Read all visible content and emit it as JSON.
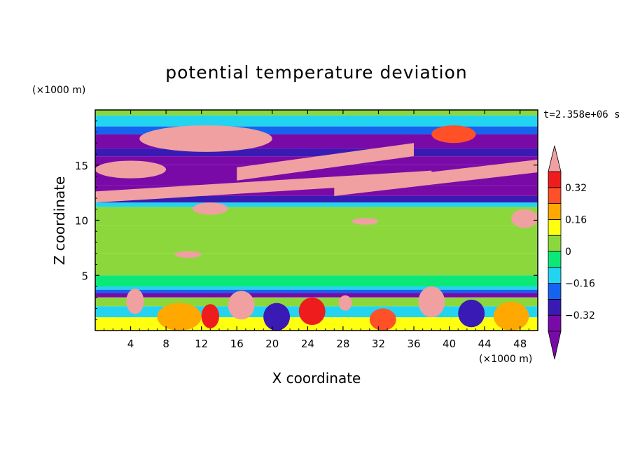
{
  "chart_data": {
    "type": "heatmap",
    "title": "potential temperature deviation",
    "time_label": "t=2.358e+06 s",
    "xlabel": "X coordinate",
    "ylabel": "Z coordinate",
    "x_unit": "(×1000 m)",
    "y_unit": "(×1000 m)",
    "xlim": [
      0,
      50
    ],
    "ylim": [
      0,
      20
    ],
    "x_ticks": [
      4,
      8,
      12,
      16,
      20,
      24,
      28,
      32,
      36,
      40,
      44,
      48
    ],
    "y_ticks": [
      5,
      10,
      15
    ],
    "colorbar": {
      "levels": [
        -0.4,
        -0.32,
        -0.24,
        -0.16,
        -0.08,
        0,
        0.08,
        0.16,
        0.24,
        0.32,
        0.4
      ],
      "tick_labels": [
        "0.32",
        "0.16",
        "0",
        "-0.16",
        "-0.32"
      ],
      "tick_values": [
        0.32,
        0.16,
        0,
        -0.16,
        -0.32
      ],
      "colors": [
        "#7a0aa8",
        "#3a1ab4",
        "#1464f0",
        "#22d4f0",
        "#0ce878",
        "#8cd83c",
        "#ffff10",
        "#ffa800",
        "#ff5028",
        "#ee1c1c"
      ],
      "over_color": "#f0a0a0",
      "under_color": "#7a0aa8"
    },
    "bands": [
      {
        "z": [
          19.5,
          20
        ],
        "value": 0.05
      },
      {
        "z": [
          18.5,
          19.5
        ],
        "value": -0.12
      },
      {
        "z": [
          17.8,
          18.5
        ],
        "value": -0.2
      },
      {
        "z": [
          16.5,
          17.8
        ],
        "value": -0.45
      },
      {
        "z": [
          15.8,
          16.5
        ],
        "value": -0.3
      },
      {
        "z": [
          15,
          15.8
        ],
        "value": -0.45
      },
      {
        "z": [
          14,
          15
        ],
        "value": -0.45
      },
      {
        "z": [
          13.2,
          14
        ],
        "value": -0.35
      },
      {
        "z": [
          12.2,
          13.2
        ],
        "value": -0.45
      },
      {
        "z": [
          11.6,
          12.2
        ],
        "value": -0.3
      },
      {
        "z": [
          11.2,
          11.6
        ],
        "value": -0.12
      },
      {
        "z": [
          9.5,
          11.2
        ],
        "value": 0.0
      },
      {
        "z": [
          7,
          9.5
        ],
        "value": 0.05
      },
      {
        "z": [
          5,
          7
        ],
        "value": 0.0
      },
      {
        "z": [
          4,
          5
        ],
        "value": -0.02
      },
      {
        "z": [
          3.7,
          4
        ],
        "value": -0.12
      },
      {
        "z": [
          3.4,
          3.7
        ],
        "value": -0.2
      },
      {
        "z": [
          3,
          3.4
        ],
        "value": -0.35
      },
      {
        "z": [
          2.2,
          3
        ],
        "value": 0.05
      },
      {
        "z": [
          1.2,
          2.2
        ],
        "value": -0.1
      },
      {
        "z": [
          0,
          1.2
        ],
        "value": 0.08
      }
    ],
    "features": [
      {
        "x": [
          5,
          20
        ],
        "z": [
          16.2,
          18.6
        ],
        "value": 0.45,
        "shape": "ellipse"
      },
      {
        "x": [
          38,
          43
        ],
        "z": [
          17,
          18.6
        ],
        "value": 0.3,
        "shape": "ellipse"
      },
      {
        "x": [
          0,
          8
        ],
        "z": [
          13.8,
          15.4
        ],
        "value": 0.45,
        "shape": "ellipse"
      },
      {
        "x": [
          16,
          36
        ],
        "z": [
          13.6,
          17
        ],
        "value": 0.45,
        "shape": "band-up"
      },
      {
        "x": [
          0,
          38
        ],
        "z": [
          11.6,
          14.5
        ],
        "value": 0.45,
        "shape": "band-up"
      },
      {
        "x": [
          27,
          50
        ],
        "z": [
          12.2,
          15.5
        ],
        "value": 0.45,
        "shape": "band-up"
      },
      {
        "x": [
          11,
          15
        ],
        "z": [
          10.5,
          11.6
        ],
        "value": 0.4,
        "shape": "ellipse"
      },
      {
        "x": [
          29,
          32
        ],
        "z": [
          9.6,
          10.2
        ],
        "value": 0.4,
        "shape": "ellipse"
      },
      {
        "x": [
          47,
          50
        ],
        "z": [
          9.3,
          11
        ],
        "value": 0.45,
        "shape": "ellipse"
      },
      {
        "x": [
          9,
          12
        ],
        "z": [
          6.6,
          7.2
        ],
        "value": 0.4,
        "shape": "ellipse"
      },
      {
        "x": [
          3.5,
          5.5
        ],
        "z": [
          1.5,
          3.8
        ],
        "value": 0.45,
        "shape": "ellipse"
      },
      {
        "x": [
          15,
          18
        ],
        "z": [
          1,
          3.6
        ],
        "value": 0.45,
        "shape": "ellipse"
      },
      {
        "x": [
          27.5,
          29
        ],
        "z": [
          1.8,
          3.2
        ],
        "value": 0.45,
        "shape": "ellipse"
      },
      {
        "x": [
          36.5,
          39.5
        ],
        "z": [
          1.2,
          4
        ],
        "value": 0.45,
        "shape": "ellipse"
      },
      {
        "x": [
          7,
          12
        ],
        "z": [
          0,
          2.5
        ],
        "value": 0.2,
        "shape": "ellipse"
      },
      {
        "x": [
          19,
          22
        ],
        "z": [
          0,
          2.5
        ],
        "value": -0.3,
        "shape": "ellipse"
      },
      {
        "x": [
          23,
          26
        ],
        "z": [
          0.5,
          3
        ],
        "value": 0.32,
        "shape": "ellipse"
      },
      {
        "x": [
          31,
          34
        ],
        "z": [
          0,
          2
        ],
        "value": 0.25,
        "shape": "ellipse"
      },
      {
        "x": [
          41,
          44
        ],
        "z": [
          0.3,
          2.8
        ],
        "value": -0.3,
        "shape": "ellipse"
      },
      {
        "x": [
          45,
          49
        ],
        "z": [
          0,
          2.6
        ],
        "value": 0.2,
        "shape": "ellipse"
      },
      {
        "x": [
          12,
          14
        ],
        "z": [
          0.2,
          2.4
        ],
        "value": 0.35,
        "shape": "ellipse"
      }
    ]
  }
}
